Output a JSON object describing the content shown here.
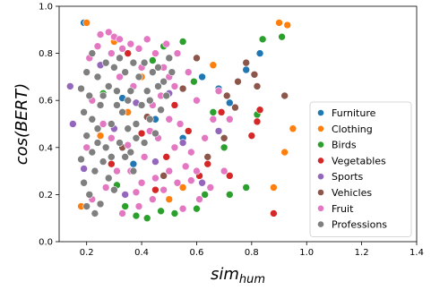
{
  "chart_data": {
    "type": "scatter",
    "xlabel_base": "sim",
    "xlabel_sub": "hum",
    "ylabel": "cos(BERT)",
    "xlim": [
      0.1,
      1.4
    ],
    "ylim": [
      0.0,
      1.0
    ],
    "xticks": [
      "0.2",
      "0.4",
      "0.6",
      "0.8",
      "1.0",
      "1.2",
      "1.4"
    ],
    "yticks": [
      "0.0",
      "0.2",
      "0.4",
      "0.6",
      "0.8",
      "1.0"
    ],
    "grid": false,
    "legend_position": "right",
    "legend": [
      {
        "name": "Furniture",
        "color": "#1f77b4"
      },
      {
        "name": "Clothing",
        "color": "#ff7f0e"
      },
      {
        "name": "Birds",
        "color": "#2ca02c"
      },
      {
        "name": "Vegetables",
        "color": "#d62728"
      },
      {
        "name": "Sports",
        "color": "#9467bd"
      },
      {
        "name": "Vehicles",
        "color": "#8c564b"
      },
      {
        "name": "Fruit",
        "color": "#e377c2"
      },
      {
        "name": "Professions",
        "color": "#7f7f7f"
      }
    ],
    "series": [
      {
        "name": "Furniture",
        "color": "#1f77b4",
        "points": [
          [
            0.19,
            0.93
          ],
          [
            0.78,
            0.73
          ],
          [
            0.68,
            0.65
          ],
          [
            0.72,
            0.59
          ],
          [
            0.55,
            0.44
          ],
          [
            0.45,
            0.52
          ],
          [
            0.33,
            0.61
          ],
          [
            0.83,
            0.8
          ],
          [
            0.62,
            0.7
          ],
          [
            0.37,
            0.33
          ]
        ]
      },
      {
        "name": "Clothing",
        "color": "#ff7f0e",
        "points": [
          [
            0.2,
            0.93
          ],
          [
            0.9,
            0.93
          ],
          [
            0.93,
            0.92
          ],
          [
            0.95,
            0.48
          ],
          [
            0.88,
            0.23
          ],
          [
            0.92,
            0.38
          ],
          [
            0.74,
            0.57
          ],
          [
            0.55,
            0.23
          ],
          [
            0.3,
            0.85
          ],
          [
            0.18,
            0.15
          ],
          [
            0.66,
            0.75
          ],
          [
            0.4,
            0.7
          ],
          [
            0.25,
            0.45
          ],
          [
            0.5,
            0.18
          ],
          [
            0.35,
            0.55
          ]
        ]
      },
      {
        "name": "Birds",
        "color": "#2ca02c",
        "points": [
          [
            0.84,
            0.86
          ],
          [
            0.91,
            0.87
          ],
          [
            0.6,
            0.14
          ],
          [
            0.38,
            0.11
          ],
          [
            0.47,
            0.13
          ],
          [
            0.52,
            0.12
          ],
          [
            0.42,
            0.1
          ],
          [
            0.78,
            0.23
          ],
          [
            0.72,
            0.2
          ],
          [
            0.63,
            0.2
          ],
          [
            0.82,
            0.54
          ],
          [
            0.48,
            0.83
          ],
          [
            0.55,
            0.85
          ],
          [
            0.59,
            0.68
          ],
          [
            0.34,
            0.15
          ],
          [
            0.7,
            0.4
          ],
          [
            0.26,
            0.63
          ],
          [
            0.66,
            0.55
          ],
          [
            0.44,
            0.77
          ],
          [
            0.31,
            0.24
          ]
        ]
      },
      {
        "name": "Vegetables",
        "color": "#d62728",
        "points": [
          [
            0.88,
            0.12
          ],
          [
            0.83,
            0.56
          ],
          [
            0.82,
            0.51
          ],
          [
            0.8,
            0.45
          ],
          [
            0.72,
            0.28
          ],
          [
            0.69,
            0.55
          ],
          [
            0.49,
            0.36
          ],
          [
            0.4,
            0.46
          ],
          [
            0.57,
            0.47
          ],
          [
            0.64,
            0.33
          ],
          [
            0.29,
            0.33
          ],
          [
            0.35,
            0.8
          ],
          [
            0.52,
            0.58
          ],
          [
            0.61,
            0.28
          ],
          [
            0.45,
            0.22
          ]
        ]
      },
      {
        "name": "Sports",
        "color": "#9467bd",
        "points": [
          [
            0.14,
            0.66
          ],
          [
            0.15,
            0.5
          ],
          [
            0.3,
            0.48
          ],
          [
            0.45,
            0.34
          ],
          [
            0.55,
            0.42
          ],
          [
            0.38,
            0.59
          ],
          [
            0.62,
            0.25
          ],
          [
            0.25,
            0.75
          ],
          [
            0.5,
            0.63
          ],
          [
            0.68,
            0.47
          ],
          [
            0.19,
            0.31
          ],
          [
            0.34,
            0.2
          ]
        ]
      },
      {
        "name": "Vehicles",
        "color": "#8c564b",
        "points": [
          [
            0.75,
            0.68
          ],
          [
            0.78,
            0.76
          ],
          [
            0.81,
            0.71
          ],
          [
            0.92,
            0.62
          ],
          [
            0.82,
            0.66
          ],
          [
            0.71,
            0.62
          ],
          [
            0.74,
            0.57
          ],
          [
            0.7,
            0.44
          ],
          [
            0.6,
            0.78
          ],
          [
            0.64,
            0.36
          ],
          [
            0.48,
            0.28
          ],
          [
            0.55,
            0.65
          ],
          [
            0.42,
            0.53
          ],
          [
            0.33,
            0.4
          ]
        ]
      },
      {
        "name": "Fruit",
        "color": "#e377c2",
        "points": [
          [
            0.25,
            0.88
          ],
          [
            0.28,
            0.89
          ],
          [
            0.3,
            0.87
          ],
          [
            0.32,
            0.86
          ],
          [
            0.24,
            0.83
          ],
          [
            0.29,
            0.8
          ],
          [
            0.33,
            0.82
          ],
          [
            0.36,
            0.84
          ],
          [
            0.39,
            0.82
          ],
          [
            0.42,
            0.86
          ],
          [
            0.45,
            0.8
          ],
          [
            0.48,
            0.74
          ],
          [
            0.5,
            0.7
          ],
          [
            0.52,
            0.66
          ],
          [
            0.47,
            0.62
          ],
          [
            0.44,
            0.58
          ],
          [
            0.5,
            0.52
          ],
          [
            0.54,
            0.5
          ],
          [
            0.46,
            0.44
          ],
          [
            0.52,
            0.4
          ],
          [
            0.58,
            0.38
          ],
          [
            0.56,
            0.32
          ],
          [
            0.5,
            0.3
          ],
          [
            0.45,
            0.27
          ],
          [
            0.4,
            0.25
          ],
          [
            0.38,
            0.21
          ],
          [
            0.44,
            0.18
          ],
          [
            0.48,
            0.22
          ],
          [
            0.53,
            0.25
          ],
          [
            0.6,
            0.3
          ],
          [
            0.63,
            0.44
          ],
          [
            0.66,
            0.52
          ],
          [
            0.6,
            0.6
          ],
          [
            0.57,
            0.72
          ],
          [
            0.4,
            0.74
          ],
          [
            0.37,
            0.66
          ],
          [
            0.35,
            0.41
          ],
          [
            0.31,
            0.3
          ],
          [
            0.27,
            0.23
          ],
          [
            0.22,
            0.18
          ],
          [
            0.2,
            0.4
          ],
          [
            0.22,
            0.6
          ],
          [
            0.21,
            0.78
          ],
          [
            0.58,
            0.26
          ],
          [
            0.61,
            0.18
          ],
          [
            0.65,
            0.23
          ],
          [
            0.55,
            0.14
          ],
          [
            0.7,
            0.3
          ],
          [
            0.68,
            0.64
          ],
          [
            0.72,
            0.52
          ],
          [
            0.49,
            0.84
          ],
          [
            0.53,
            0.8
          ],
          [
            0.41,
            0.36
          ],
          [
            0.36,
            0.3
          ],
          [
            0.32,
            0.7
          ],
          [
            0.26,
            0.5
          ],
          [
            0.29,
            0.44
          ],
          [
            0.43,
            0.47
          ],
          [
            0.39,
            0.15
          ],
          [
            0.33,
            0.12
          ]
        ]
      },
      {
        "name": "Professions",
        "color": "#7f7f7f",
        "points": [
          [
            0.19,
            0.25
          ],
          [
            0.21,
            0.2
          ],
          [
            0.2,
            0.15
          ],
          [
            0.23,
            0.12
          ],
          [
            0.25,
            0.16
          ],
          [
            0.18,
            0.35
          ],
          [
            0.2,
            0.45
          ],
          [
            0.19,
            0.55
          ],
          [
            0.18,
            0.65
          ],
          [
            0.2,
            0.72
          ],
          [
            0.22,
            0.8
          ],
          [
            0.24,
            0.7
          ],
          [
            0.26,
            0.62
          ],
          [
            0.22,
            0.52
          ],
          [
            0.24,
            0.42
          ],
          [
            0.26,
            0.34
          ],
          [
            0.28,
            0.27
          ],
          [
            0.3,
            0.22
          ],
          [
            0.27,
            0.4
          ],
          [
            0.29,
            0.5
          ],
          [
            0.31,
            0.58
          ],
          [
            0.28,
            0.66
          ],
          [
            0.3,
            0.74
          ],
          [
            0.32,
            0.78
          ],
          [
            0.34,
            0.72
          ],
          [
            0.36,
            0.64
          ],
          [
            0.33,
            0.55
          ],
          [
            0.35,
            0.48
          ],
          [
            0.32,
            0.42
          ],
          [
            0.34,
            0.36
          ],
          [
            0.37,
            0.3
          ],
          [
            0.38,
            0.5
          ],
          [
            0.4,
            0.58
          ],
          [
            0.42,
            0.64
          ],
          [
            0.39,
            0.7
          ],
          [
            0.41,
            0.76
          ],
          [
            0.44,
            0.72
          ],
          [
            0.46,
            0.66
          ],
          [
            0.43,
            0.52
          ],
          [
            0.45,
            0.46
          ],
          [
            0.47,
            0.56
          ],
          [
            0.49,
            0.62
          ],
          [
            0.51,
            0.72
          ],
          [
            0.5,
            0.78
          ],
          [
            0.48,
            0.68
          ],
          [
            0.36,
            0.38
          ],
          [
            0.25,
            0.58
          ],
          [
            0.23,
            0.3
          ],
          [
            0.21,
            0.62
          ],
          [
            0.27,
            0.76
          ],
          [
            0.24,
            0.48
          ],
          [
            0.38,
            0.44
          ],
          [
            0.41,
            0.42
          ],
          [
            0.29,
            0.36
          ],
          [
            0.31,
            0.64
          ],
          [
            0.35,
            0.6
          ],
          [
            0.37,
            0.76
          ],
          [
            0.43,
            0.6
          ],
          [
            0.46,
            0.74
          ],
          [
            0.22,
            0.38
          ]
        ]
      }
    ]
  }
}
